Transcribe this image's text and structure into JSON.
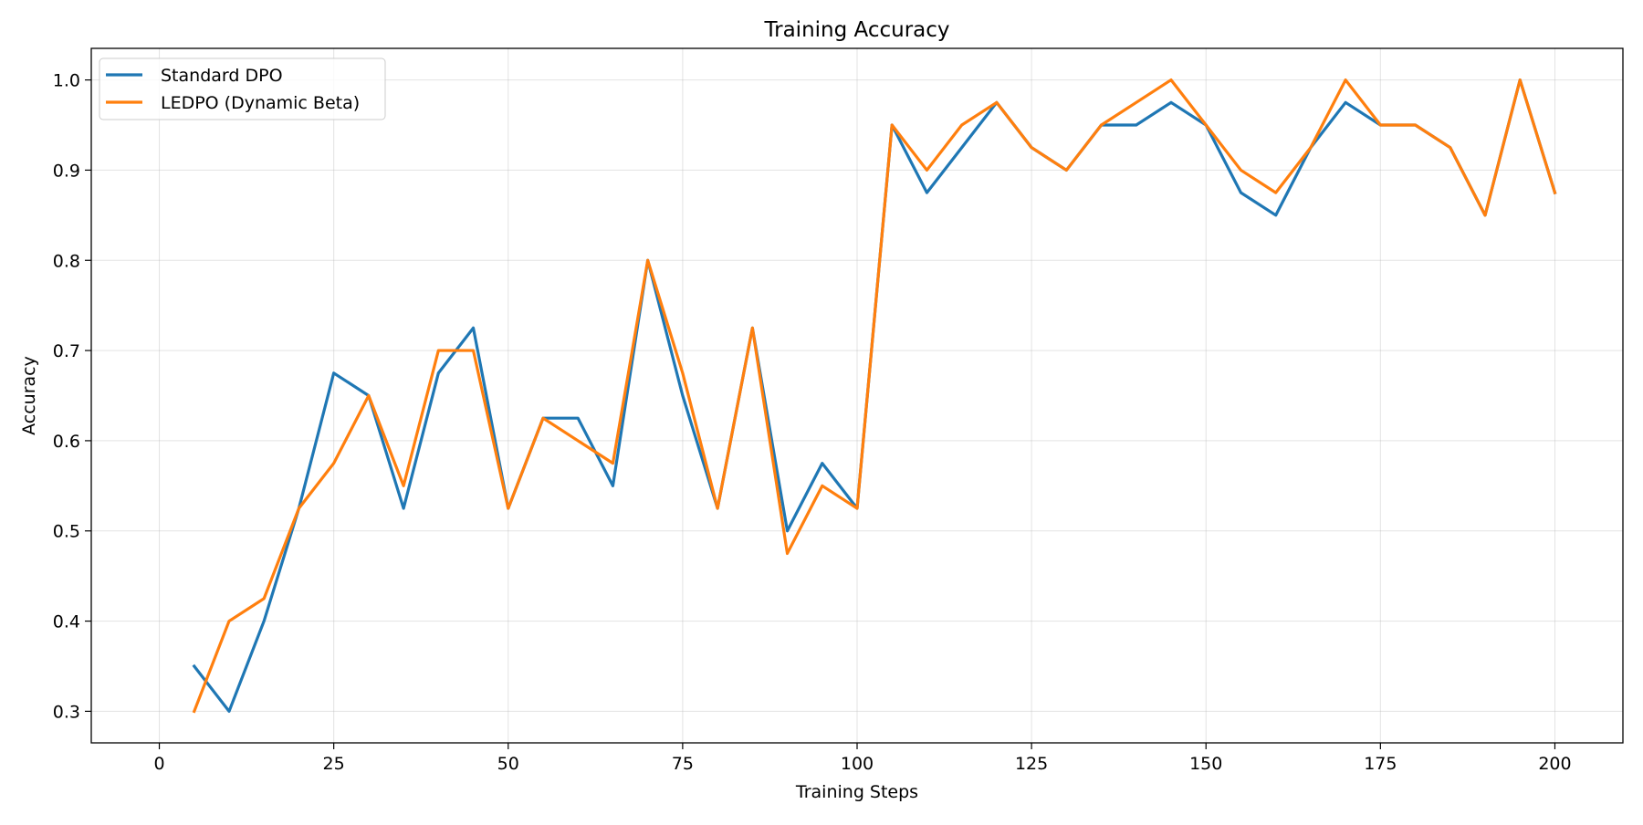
{
  "chart_data": {
    "type": "line",
    "title": "Training Accuracy",
    "xlabel": "Training Steps",
    "ylabel": "Accuracy",
    "xlim": [
      -9.75,
      209.75
    ],
    "ylim": [
      0.265,
      1.035
    ],
    "xticks": [
      0,
      25,
      50,
      75,
      100,
      125,
      150,
      175,
      200
    ],
    "xtick_labels": [
      "0",
      "25",
      "50",
      "75",
      "100",
      "125",
      "150",
      "175",
      "200"
    ],
    "yticks": [
      0.3,
      0.4,
      0.5,
      0.6,
      0.7,
      0.8,
      0.9,
      1.0
    ],
    "ytick_labels": [
      "0.3",
      "0.4",
      "0.5",
      "0.6",
      "0.7",
      "0.8",
      "0.9",
      "1.0"
    ],
    "grid": true,
    "legend_position": "top-left",
    "x": [
      5,
      10,
      15,
      20,
      25,
      30,
      35,
      40,
      45,
      50,
      55,
      60,
      65,
      70,
      75,
      80,
      85,
      90,
      95,
      100,
      105,
      110,
      115,
      120,
      125,
      130,
      135,
      140,
      145,
      150,
      155,
      160,
      165,
      170,
      175,
      180,
      185,
      190,
      195,
      200
    ],
    "series": [
      {
        "name": "Standard DPO",
        "color": "#1f77b4",
        "values": [
          0.35,
          0.3,
          0.4,
          0.525,
          0.675,
          0.65,
          0.525,
          0.675,
          0.725,
          0.525,
          0.625,
          0.625,
          0.55,
          0.8,
          0.65,
          0.525,
          0.725,
          0.5,
          0.575,
          0.525,
          0.95,
          0.875,
          0.925,
          0.975,
          0.925,
          0.9,
          0.95,
          0.95,
          0.975,
          0.95,
          0.875,
          0.85,
          0.925,
          0.975,
          0.95,
          0.95,
          0.925,
          0.85,
          1.0,
          0.875
        ]
      },
      {
        "name": "LEDPO (Dynamic Beta)",
        "color": "#ff7f0e",
        "values": [
          0.3,
          0.4,
          0.425,
          0.525,
          0.575,
          0.65,
          0.55,
          0.7,
          0.7,
          0.525,
          0.625,
          0.6,
          0.575,
          0.8,
          0.675,
          0.525,
          0.725,
          0.475,
          0.55,
          0.525,
          0.95,
          0.9,
          0.95,
          0.975,
          0.925,
          0.9,
          0.95,
          0.975,
          1.0,
          0.95,
          0.9,
          0.875,
          0.925,
          1.0,
          0.95,
          0.95,
          0.925,
          0.85,
          1.0,
          0.875
        ]
      }
    ]
  }
}
